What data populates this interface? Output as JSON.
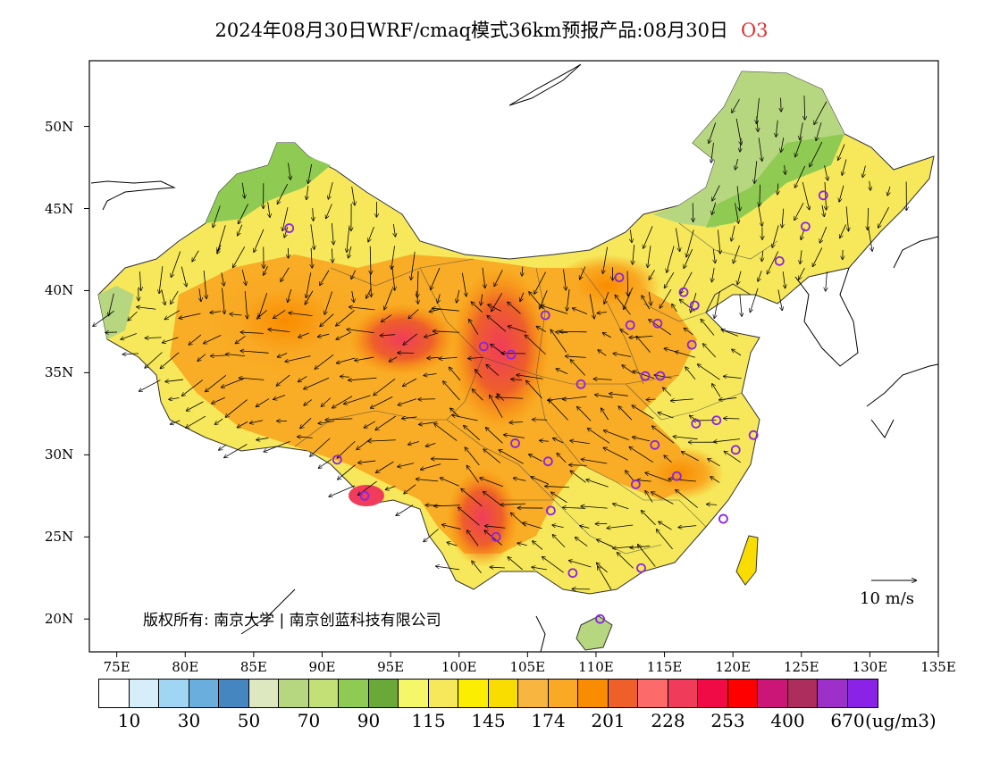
{
  "title": {
    "main": "2024年08月30日WRF/cmaq模式36km预报产品:08月30日",
    "species": "O3",
    "species_color": "#e03030"
  },
  "map": {
    "lon_range": [
      73,
      135
    ],
    "lat_range": [
      18,
      54
    ],
    "x_ticks": [
      "75E",
      "80E",
      "85E",
      "90E",
      "95E",
      "100E",
      "105E",
      "110E",
      "115E",
      "120E",
      "125E",
      "130E",
      "135E"
    ],
    "x_tick_values": [
      75,
      80,
      85,
      90,
      95,
      100,
      105,
      110,
      115,
      120,
      125,
      130,
      135
    ],
    "y_ticks": [
      "20N",
      "25N",
      "30N",
      "35N",
      "40N",
      "45N",
      "50N"
    ],
    "y_tick_values": [
      20,
      25,
      30,
      35,
      40,
      45,
      50
    ],
    "copyright": "版权所有: 南京大学 | 南京创蓝科技有限公司",
    "wind_reference": "10 m/s",
    "stations": [
      [
        87.6,
        43.8
      ],
      [
        91.1,
        29.7
      ],
      [
        93.1,
        27.5
      ],
      [
        101.8,
        36.6
      ],
      [
        103.8,
        36.1
      ],
      [
        106.3,
        38.5
      ],
      [
        111.7,
        40.8
      ],
      [
        112.5,
        37.9
      ],
      [
        114.5,
        38.0
      ],
      [
        116.4,
        39.9
      ],
      [
        117.2,
        39.1
      ],
      [
        117.0,
        36.7
      ],
      [
        114.7,
        34.8
      ],
      [
        113.6,
        34.8
      ],
      [
        108.9,
        34.3
      ],
      [
        104.1,
        30.7
      ],
      [
        106.5,
        29.6
      ],
      [
        106.7,
        26.6
      ],
      [
        102.7,
        25.0
      ],
      [
        108.3,
        22.8
      ],
      [
        113.3,
        23.1
      ],
      [
        110.3,
        20.0
      ],
      [
        112.9,
        28.2
      ],
      [
        114.3,
        30.6
      ],
      [
        115.9,
        28.7
      ],
      [
        117.3,
        31.9
      ],
      [
        118.8,
        32.1
      ],
      [
        120.2,
        30.3
      ],
      [
        121.5,
        31.2
      ],
      [
        119.3,
        26.1
      ],
      [
        123.4,
        41.8
      ],
      [
        125.3,
        43.9
      ],
      [
        126.6,
        45.8
      ]
    ]
  },
  "legend": {
    "colors": [
      "#ffffff",
      "#d5eefa",
      "#a0d6f3",
      "#6aaedd",
      "#4686c0",
      "#dde8c0",
      "#b6d67f",
      "#c3e077",
      "#8fca52",
      "#6aa83a",
      "#f5f668",
      "#f6e85a",
      "#fcee00",
      "#f9dd00",
      "#f8b540",
      "#f9a923",
      "#f98c00",
      "#ee5f2a",
      "#fc6a6a",
      "#f03c5a",
      "#f00a46",
      "#fe0000",
      "#cb1577",
      "#ad2e5c",
      "#9d30c8",
      "#8a23e6"
    ],
    "labels": [
      "10",
      "30",
      "50",
      "70",
      "90",
      "115",
      "145",
      "174",
      "201",
      "228",
      "253",
      "400",
      "670"
    ],
    "unit": "(ug/m3)"
  }
}
